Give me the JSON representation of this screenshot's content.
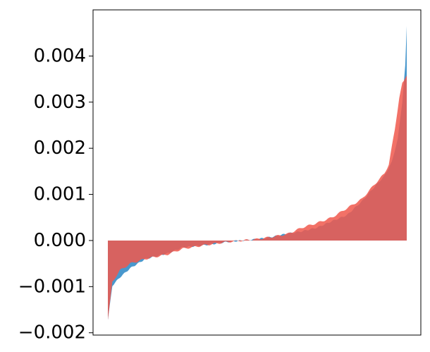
{
  "chart_data": {
    "type": "area",
    "title": "",
    "xlabel": "",
    "ylabel": "",
    "x_ticks_visible": false,
    "grid": false,
    "legend": "none",
    "ylim": [
      -0.00205,
      0.005
    ],
    "y_ticks": [
      {
        "value": 0.004,
        "label": "0.004"
      },
      {
        "value": 0.003,
        "label": "0.003"
      },
      {
        "value": 0.002,
        "label": "0.002"
      },
      {
        "value": 0.001,
        "label": "0.001"
      },
      {
        "value": 0.0,
        "label": "0.000"
      },
      {
        "value": -0.001,
        "label": "−0.001"
      },
      {
        "value": -0.002,
        "label": "−0.002"
      }
    ],
    "x_count": 201,
    "series": [
      {
        "color": "#3a8fc9",
        "opacity": 0.92,
        "knots": [
          [
            0,
            -0.00172
          ],
          [
            3,
            -0.00098
          ],
          [
            8,
            -0.0008
          ],
          [
            15,
            -0.0006
          ],
          [
            25,
            -0.0004
          ],
          [
            40,
            -0.00028
          ],
          [
            50,
            -0.00015
          ],
          [
            65,
            -0.0001
          ],
          [
            80,
            -3e-05
          ],
          [
            90,
            0.0
          ],
          [
            100,
            3e-05
          ],
          [
            110,
            8e-05
          ],
          [
            120,
            0.00015
          ],
          [
            130,
            0.0002
          ],
          [
            140,
            0.00028
          ],
          [
            150,
            0.00042
          ],
          [
            160,
            0.00055
          ],
          [
            170,
            0.00085
          ],
          [
            178,
            0.00115
          ],
          [
            185,
            0.0014
          ],
          [
            190,
            0.0017
          ],
          [
            194,
            0.0022
          ],
          [
            197,
            0.003
          ],
          [
            199,
            0.0038
          ],
          [
            200,
            0.00465
          ]
        ]
      },
      {
        "color": "#f0584c",
        "opacity": 0.85,
        "knots": [
          [
            0,
            -0.00172
          ],
          [
            3,
            -0.0009
          ],
          [
            8,
            -0.00065
          ],
          [
            15,
            -0.0005
          ],
          [
            25,
            -0.0004
          ],
          [
            40,
            -0.0003
          ],
          [
            50,
            -0.00018
          ],
          [
            65,
            -0.0001
          ],
          [
            80,
            -3e-05
          ],
          [
            90,
            0.0
          ],
          [
            100,
            3e-05
          ],
          [
            110,
            8e-05
          ],
          [
            120,
            0.00014
          ],
          [
            130,
            0.00028
          ],
          [
            140,
            0.00038
          ],
          [
            150,
            0.0005
          ],
          [
            160,
            0.0007
          ],
          [
            170,
            0.0009
          ],
          [
            178,
            0.0012
          ],
          [
            185,
            0.00145
          ],
          [
            188,
            0.00165
          ],
          [
            192,
            0.0024
          ],
          [
            195,
            0.0031
          ],
          [
            197,
            0.0034
          ],
          [
            200,
            0.00358
          ]
        ]
      }
    ]
  }
}
